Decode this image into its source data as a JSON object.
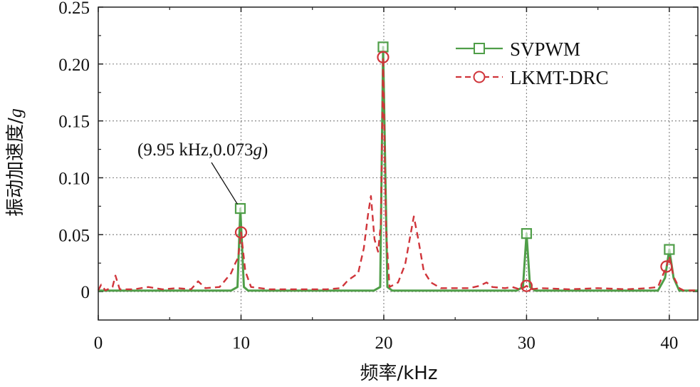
{
  "chart_data": {
    "type": "line",
    "xlabel": "频率/kHz",
    "ylabel": "振动加速度/",
    "ylabel_unit": "g",
    "xlim": [
      0,
      42
    ],
    "ylim": [
      -0.025,
      0.25
    ],
    "xticks": [
      0,
      10,
      20,
      30,
      40
    ],
    "xtick_labels": [
      "0",
      "10",
      "20",
      "30",
      "40"
    ],
    "yticks": [
      0,
      0.05,
      0.1,
      0.15,
      0.2,
      0.25
    ],
    "ytick_labels": [
      "0",
      "0.05",
      "0.10",
      "0.15",
      "0.20",
      "0.25"
    ],
    "grid": true,
    "legend_position": "top-right",
    "series": [
      {
        "name": "SVPWM",
        "color": "#4f9e48",
        "line_style": "solid",
        "marker": "square",
        "points": [
          [
            0,
            0.0008
          ],
          [
            9.3,
            0.0008
          ],
          [
            9.75,
            0.004
          ],
          [
            9.95,
            0.073
          ],
          [
            10.2,
            0.004
          ],
          [
            10.5,
            0.0008
          ],
          [
            19.3,
            0.0008
          ],
          [
            19.75,
            0.004
          ],
          [
            19.95,
            0.215
          ],
          [
            20.25,
            0.004
          ],
          [
            20.6,
            0.0008
          ],
          [
            29.3,
            0.0008
          ],
          [
            29.75,
            0.004
          ],
          [
            30.0,
            0.051
          ],
          [
            30.25,
            0.004
          ],
          [
            30.6,
            0.0008
          ],
          [
            39.2,
            0.0008
          ],
          [
            39.7,
            0.012
          ],
          [
            40.0,
            0.037
          ],
          [
            40.3,
            0.012
          ],
          [
            40.7,
            0.0008
          ],
          [
            42,
            0.0008
          ]
        ],
        "markers": [
          [
            9.95,
            0.073
          ],
          [
            19.95,
            0.215
          ],
          [
            30.0,
            0.051
          ],
          [
            40.0,
            0.037
          ]
        ]
      },
      {
        "name": "LKMT-DRC",
        "color": "#d0343a",
        "line_style": "dashed",
        "marker": "circle",
        "points": [
          [
            0,
            0.001
          ],
          [
            0.2,
            0.006
          ],
          [
            0.5,
            0.001
          ],
          [
            1.0,
            0.004
          ],
          [
            1.2,
            0.014
          ],
          [
            1.5,
            0.002
          ],
          [
            2.5,
            0.002
          ],
          [
            3.5,
            0.004
          ],
          [
            4.5,
            0.002
          ],
          [
            5.5,
            0.003
          ],
          [
            6.5,
            0.002
          ],
          [
            7.0,
            0.009
          ],
          [
            7.5,
            0.003
          ],
          [
            8.5,
            0.004
          ],
          [
            9.3,
            0.016
          ],
          [
            9.6,
            0.025
          ],
          [
            9.8,
            0.03
          ],
          [
            10.0,
            0.052
          ],
          [
            10.3,
            0.018
          ],
          [
            10.7,
            0.004
          ],
          [
            12,
            0.002
          ],
          [
            14,
            0.002
          ],
          [
            16,
            0.002
          ],
          [
            17,
            0.003
          ],
          [
            17.5,
            0.01
          ],
          [
            18.2,
            0.016
          ],
          [
            18.6,
            0.038
          ],
          [
            18.9,
            0.068
          ],
          [
            19.1,
            0.084
          ],
          [
            19.35,
            0.046
          ],
          [
            19.6,
            0.035
          ],
          [
            19.8,
            0.06
          ],
          [
            19.95,
            0.206
          ],
          [
            20.15,
            0.056
          ],
          [
            20.4,
            0.004
          ],
          [
            21,
            0.008
          ],
          [
            21.5,
            0.024
          ],
          [
            21.8,
            0.045
          ],
          [
            22.1,
            0.066
          ],
          [
            22.4,
            0.047
          ],
          [
            22.8,
            0.018
          ],
          [
            23.3,
            0.008
          ],
          [
            24,
            0.003
          ],
          [
            26,
            0.003
          ],
          [
            26.7,
            0.005
          ],
          [
            27.2,
            0.008
          ],
          [
            27.6,
            0.004
          ],
          [
            28.5,
            0.003
          ],
          [
            29.0,
            0.004
          ],
          [
            29.5,
            0.002
          ],
          [
            29.75,
            0.003
          ],
          [
            30.0,
            0.005
          ],
          [
            30.3,
            0.002
          ],
          [
            31,
            0.003
          ],
          [
            33,
            0.002
          ],
          [
            35,
            0.003
          ],
          [
            37,
            0.002
          ],
          [
            38.5,
            0.003
          ],
          [
            39.2,
            0.004
          ],
          [
            39.6,
            0.016
          ],
          [
            39.8,
            0.022
          ],
          [
            40.0,
            0.031
          ],
          [
            40.3,
            0.013
          ],
          [
            40.7,
            0.003
          ],
          [
            41,
            0.001
          ],
          [
            42,
            0.001
          ]
        ],
        "markers": [
          [
            10.0,
            0.052
          ],
          [
            19.95,
            0.206
          ],
          [
            30.0,
            0.005
          ],
          [
            39.8,
            0.022
          ]
        ]
      }
    ],
    "annotations": [
      {
        "text": "(9.95 kHz,0.073",
        "italic_suffix": "g",
        "close": ")",
        "x": 9.95,
        "y": 0.073
      }
    ]
  }
}
